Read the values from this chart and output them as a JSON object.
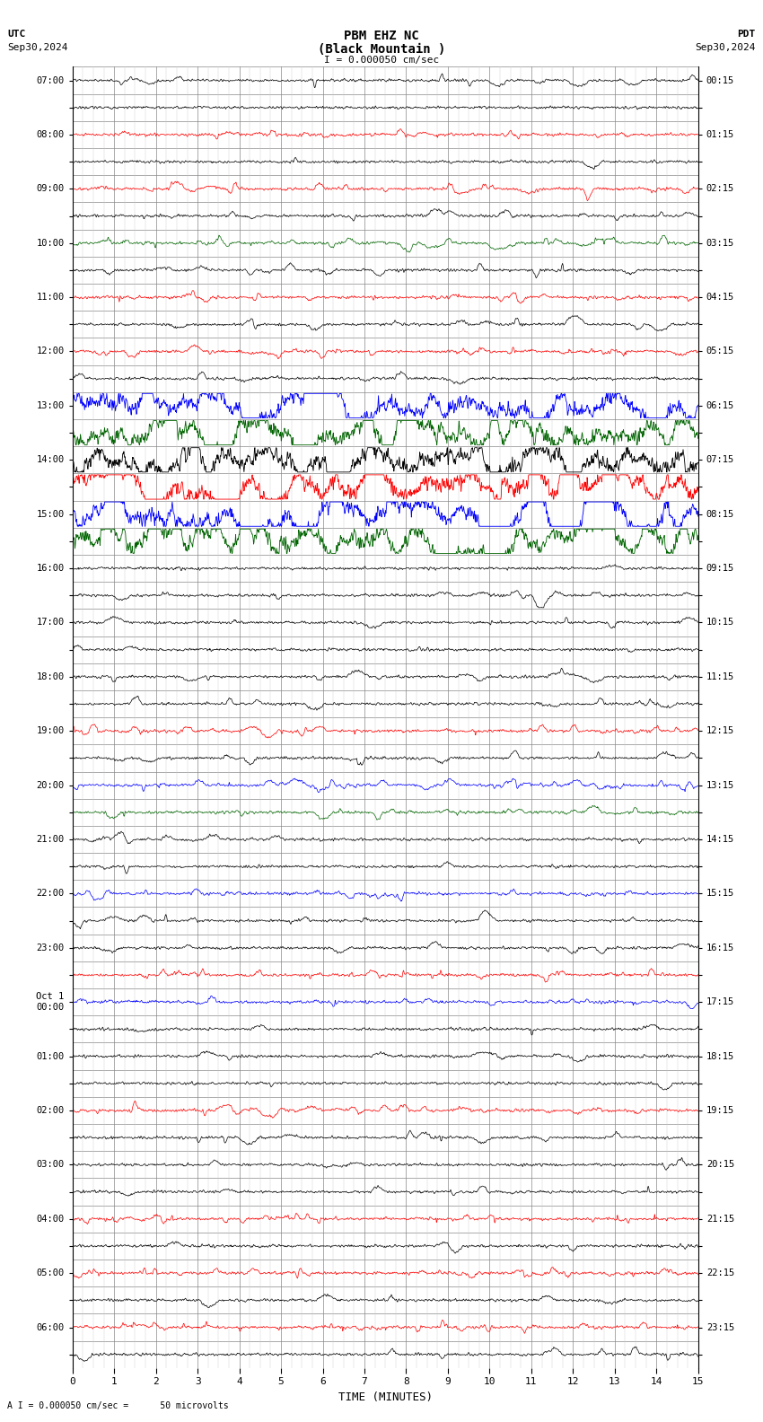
{
  "title_line1": "PBM EHZ NC",
  "title_line2": "(Black Mountain )",
  "scale_label": "I = 0.000050 cm/sec",
  "bottom_label": "A I = 0.000050 cm/sec =      50 microvolts",
  "utc_label": "UTC",
  "utc_date": "Sep30,2024",
  "pdt_label": "PDT",
  "pdt_date": "Sep30,2024",
  "xlabel": "TIME (MINUTES)",
  "x_ticks": [
    0,
    1,
    2,
    3,
    4,
    5,
    6,
    7,
    8,
    9,
    10,
    11,
    12,
    13,
    14,
    15
  ],
  "left_times": [
    "07:00",
    "",
    "08:00",
    "",
    "09:00",
    "",
    "10:00",
    "",
    "11:00",
    "",
    "12:00",
    "",
    "13:00",
    "",
    "14:00",
    "",
    "15:00",
    "",
    "16:00",
    "",
    "17:00",
    "",
    "18:00",
    "",
    "19:00",
    "",
    "20:00",
    "",
    "21:00",
    "",
    "22:00",
    "",
    "23:00",
    "",
    "Oct 1\n00:00",
    "",
    "01:00",
    "",
    "02:00",
    "",
    "03:00",
    "",
    "04:00",
    "",
    "05:00",
    "",
    "06:00",
    ""
  ],
  "right_times": [
    "00:15",
    "",
    "01:15",
    "",
    "02:15",
    "",
    "03:15",
    "",
    "04:15",
    "",
    "05:15",
    "",
    "06:15",
    "",
    "07:15",
    "",
    "08:15",
    "",
    "09:15",
    "",
    "10:15",
    "",
    "11:15",
    "",
    "12:15",
    "",
    "13:15",
    "",
    "14:15",
    "",
    "15:15",
    "",
    "16:15",
    "",
    "17:15",
    "",
    "18:15",
    "",
    "19:15",
    "",
    "20:15",
    "",
    "21:15",
    "",
    "22:15",
    "",
    "23:15",
    ""
  ],
  "n_rows": 48,
  "minutes": 15,
  "bg_color": "#ffffff",
  "trace_color": "#000000",
  "grid_color": "#aaaaaa",
  "red_color": "#ff0000",
  "blue_color": "#0000ff",
  "green_color": "#006400",
  "seed": 12345,
  "row_colors_map": {
    "2": "red",
    "4": "red",
    "6": "green",
    "8": "red",
    "10": "red",
    "12": "blue",
    "13": "green",
    "14": "black",
    "15": "red",
    "16": "blue",
    "17": "green",
    "24": "red",
    "26": "blue",
    "27": "green",
    "30": "blue",
    "33": "red",
    "34": "blue",
    "38": "red",
    "42": "red",
    "44": "red",
    "46": "red"
  }
}
